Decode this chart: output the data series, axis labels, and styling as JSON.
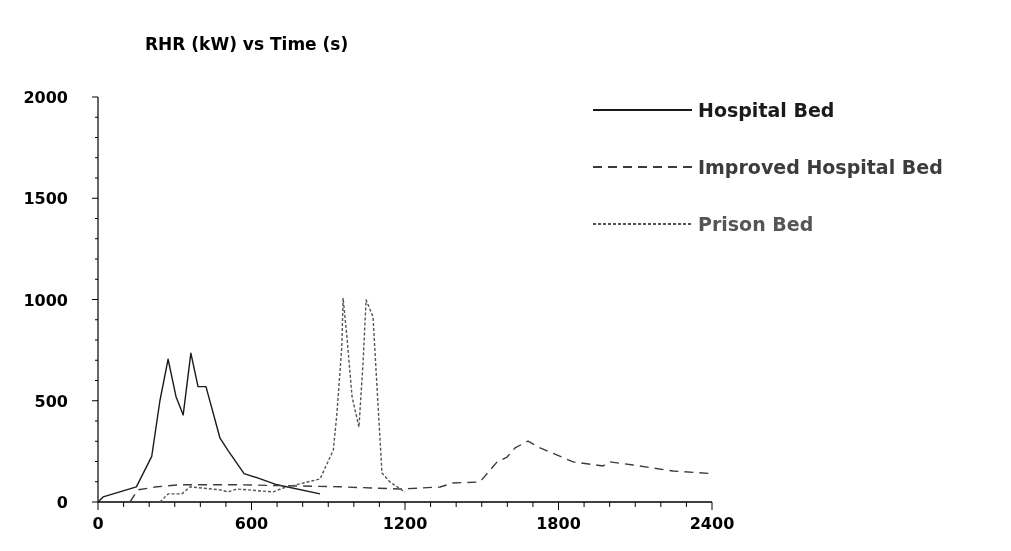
{
  "chart_data": {
    "type": "line",
    "title": "RHR (kW) vs Time (s)",
    "xlim": [
      0,
      2400
    ],
    "ylim": [
      0,
      2000
    ],
    "xticks": [
      0,
      {
        "value": 100,
        "label": null
      },
      {
        "value": 200,
        "label": null
      },
      {
        "value": 300,
        "label": null
      },
      {
        "value": 400,
        "label": null
      },
      {
        "value": 500,
        "label": null
      },
      600,
      {
        "value": 700,
        "label": null
      },
      {
        "value": 800,
        "label": null
      },
      {
        "value": 900,
        "label": null
      },
      {
        "value": 1000,
        "label": null
      },
      {
        "value": 1100,
        "label": null
      },
      1200,
      {
        "value": 1300,
        "label": null
      },
      {
        "value": 1400,
        "label": null
      },
      {
        "value": 1500,
        "label": null
      },
      {
        "value": 1600,
        "label": null
      },
      {
        "value": 1700,
        "label": null
      },
      1800,
      {
        "value": 1900,
        "label": null
      },
      {
        "value": 2000,
        "label": null
      },
      {
        "value": 2100,
        "label": null
      },
      {
        "value": 2200,
        "label": null
      },
      {
        "value": 2300,
        "label": null
      },
      2400
    ],
    "yticks": [
      0,
      {
        "value": 100,
        "label": null
      },
      {
        "value": 200,
        "label": null
      },
      {
        "value": 300,
        "label": null
      },
      {
        "value": 400,
        "label": null
      },
      500,
      {
        "value": 600,
        "label": null
      },
      {
        "value": 700,
        "label": null
      },
      {
        "value": 800,
        "label": null
      },
      {
        "value": 900,
        "label": null
      },
      1000,
      {
        "value": 1100,
        "label": null
      },
      {
        "value": 1200,
        "label": null
      },
      {
        "value": 1300,
        "label": null
      },
      {
        "value": 1400,
        "label": null
      },
      1500,
      {
        "value": 1600,
        "label": null
      },
      {
        "value": 1700,
        "label": null
      },
      {
        "value": 1800,
        "label": null
      },
      {
        "value": 1900,
        "label": null
      },
      2000
    ],
    "grid": false,
    "legend": "top right",
    "series": [
      {
        "name": "Hospital Bed",
        "color": "#1a1a1a",
        "line_style": "solid",
        "x": [
          0,
          20,
          150,
          210,
          242,
          274,
          305,
          333,
          363,
          391,
          422,
          477,
          508,
          571,
          621,
          700,
          868
        ],
        "values": [
          0,
          25,
          75,
          225,
          500,
          705,
          520,
          430,
          735,
          570,
          570,
          315,
          255,
          140,
          120,
          85,
          40
        ]
      },
      {
        "name": "Improved Hospital Bed",
        "color": "#3c3c3c",
        "line_style": "dashed",
        "x": [
          125,
          156,
          230,
          320,
          555,
          750,
          946,
          1180,
          1337,
          1388,
          1493,
          1560,
          1599,
          1630,
          1681,
          1728,
          1857,
          1974,
          2001,
          2091,
          2248,
          2400
        ],
        "values": [
          0,
          60,
          75,
          85,
          85,
          80,
          75,
          64,
          74,
          94,
          99,
          198,
          222,
          267,
          301,
          267,
          198,
          178,
          198,
          183,
          153,
          140
        ]
      },
      {
        "name": "Prison Bed",
        "color": "#555555",
        "line_style": "dotted",
        "x": [
          242,
          274,
          328,
          360,
          477,
          508,
          543,
          684,
          723,
          868,
          920,
          934,
          953,
          958,
          973,
          993,
          1020,
          1036,
          1048,
          1075,
          1095,
          1110,
          1141,
          1200
        ],
        "values": [
          0,
          40,
          40,
          75,
          60,
          50,
          64,
          50,
          69,
          114,
          257,
          440,
          765,
          1007,
          815,
          520,
          370,
          687,
          998,
          914,
          470,
          143,
          99,
          49
        ]
      }
    ]
  }
}
